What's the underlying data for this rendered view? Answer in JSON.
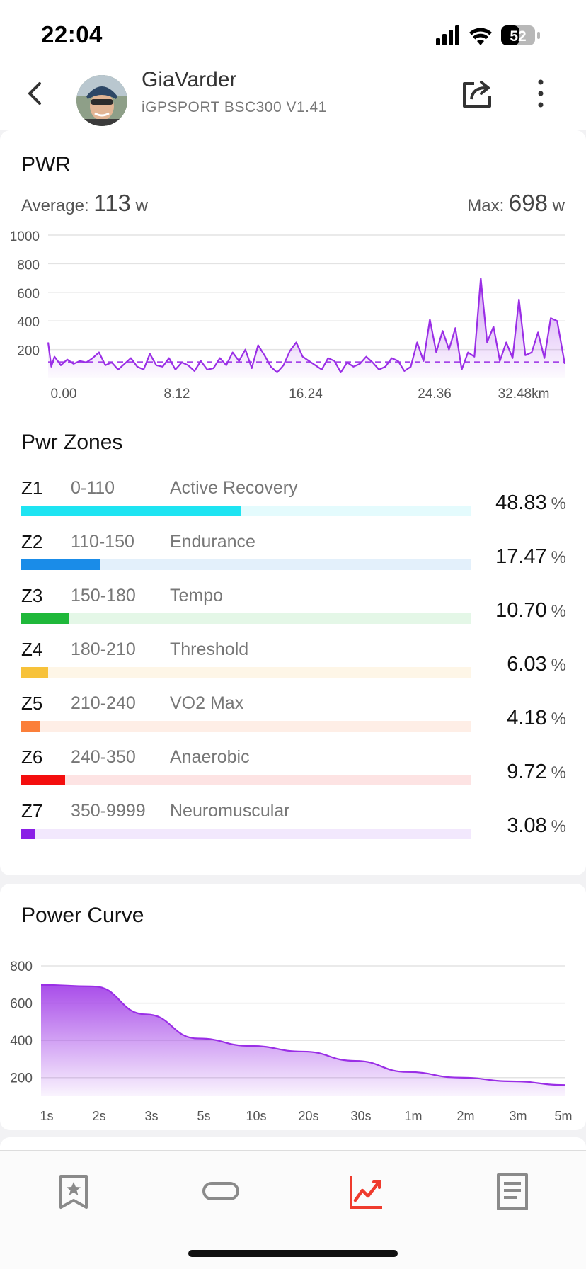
{
  "status": {
    "time": "22:04",
    "battery": "52"
  },
  "header": {
    "name": "GiaVarder",
    "device": "iGPSPORT BSC300 V1.41"
  },
  "pwr": {
    "title": "PWR",
    "average_label": "Average:",
    "average_value": "113",
    "average_unit": "w",
    "max_label": "Max:",
    "max_value": "698",
    "max_unit": "w"
  },
  "zones_title": "Pwr Zones",
  "zones": [
    {
      "id": "Z1",
      "range": "0-110",
      "name": "Active Recovery",
      "pct": "48.83",
      "color": "#1ee4f2",
      "track": "#e4fbfd"
    },
    {
      "id": "Z2",
      "range": "110-150",
      "name": "Endurance",
      "pct": "17.47",
      "color": "#1a8ce8",
      "track": "#e3f0fb"
    },
    {
      "id": "Z3",
      "range": "150-180",
      "name": "Tempo",
      "pct": "10.70",
      "color": "#1fb83a",
      "track": "#e4f7e7"
    },
    {
      "id": "Z4",
      "range": "180-210",
      "name": "Threshold",
      "pct": "6.03",
      "color": "#f7c23a",
      "track": "#fef6e7"
    },
    {
      "id": "Z5",
      "range": "210-240",
      "name": "VO2 Max",
      "pct": "4.18",
      "color": "#fb7f3a",
      "track": "#feeee6"
    },
    {
      "id": "Z6",
      "range": "240-350",
      "name": "Anaerobic",
      "pct": "9.72",
      "color": "#f40e0e",
      "track": "#fde3e3"
    },
    {
      "id": "Z7",
      "range": "350-9999",
      "name": "Neuromuscular",
      "pct": "3.08",
      "color": "#8a1ee6",
      "track": "#f2e8fd"
    }
  ],
  "pct_symbol": "%",
  "curve_title": "Power Curve",
  "chart_data": [
    {
      "type": "line",
      "title": "PWR",
      "xlabel": "",
      "ylabel": "",
      "xlim": [
        0,
        32.48
      ],
      "ylim": [
        0,
        1000
      ],
      "yticks": [
        "200",
        "400",
        "600",
        "800",
        "1000"
      ],
      "xticks": [
        "0.00",
        "8.12",
        "16.24",
        "24.36",
        "32.48km"
      ],
      "average_line": 113,
      "grid": true,
      "color": "#9a2ee6",
      "x": [
        0,
        0.2,
        0.4,
        0.8,
        1.2,
        1.6,
        2.0,
        2.4,
        2.8,
        3.2,
        3.6,
        4.0,
        4.4,
        4.8,
        5.2,
        5.6,
        6.0,
        6.4,
        6.8,
        7.2,
        7.6,
        8.0,
        8.4,
        8.8,
        9.2,
        9.6,
        10.0,
        10.4,
        10.8,
        11.2,
        11.6,
        12.0,
        12.4,
        12.8,
        13.2,
        13.6,
        14.0,
        14.4,
        14.8,
        15.2,
        15.6,
        16.0,
        16.4,
        16.8,
        17.2,
        17.6,
        18.0,
        18.4,
        18.8,
        19.2,
        19.6,
        20.0,
        20.4,
        20.8,
        21.2,
        21.6,
        22.0,
        22.4,
        22.8,
        23.2,
        23.6,
        24.0,
        24.4,
        24.8,
        25.2,
        25.6,
        26.0,
        26.4,
        26.8,
        27.2,
        27.6,
        28.0,
        28.4,
        28.8,
        29.2,
        29.6,
        30.0,
        30.4,
        30.8,
        31.2,
        31.6,
        32.0,
        32.48
      ],
      "y": [
        250,
        80,
        150,
        90,
        130,
        100,
        120,
        110,
        140,
        180,
        90,
        110,
        60,
        100,
        140,
        80,
        60,
        170,
        90,
        80,
        140,
        60,
        110,
        90,
        50,
        120,
        60,
        70,
        140,
        90,
        180,
        120,
        200,
        70,
        230,
        160,
        80,
        40,
        90,
        190,
        250,
        150,
        120,
        90,
        60,
        140,
        120,
        40,
        110,
        80,
        100,
        150,
        110,
        60,
        80,
        140,
        120,
        50,
        80,
        250,
        120,
        410,
        180,
        330,
        200,
        350,
        60,
        180,
        150,
        698,
        250,
        360,
        120,
        250,
        140,
        550,
        160,
        180,
        320,
        140,
        420,
        400,
        100
      ]
    },
    {
      "type": "area",
      "title": "Power Curve",
      "xlabel": "",
      "ylabel": "",
      "ylim": [
        100,
        800
      ],
      "yticks": [
        "200",
        "400",
        "600",
        "800"
      ],
      "categories": [
        "1s",
        "2s",
        "3s",
        "5s",
        "10s",
        "20s",
        "30s",
        "1m",
        "2m",
        "3m",
        "5m"
      ],
      "values": [
        698,
        690,
        540,
        410,
        370,
        340,
        290,
        230,
        200,
        180,
        160
      ],
      "grid": true,
      "color": "#9a2ee6"
    }
  ]
}
